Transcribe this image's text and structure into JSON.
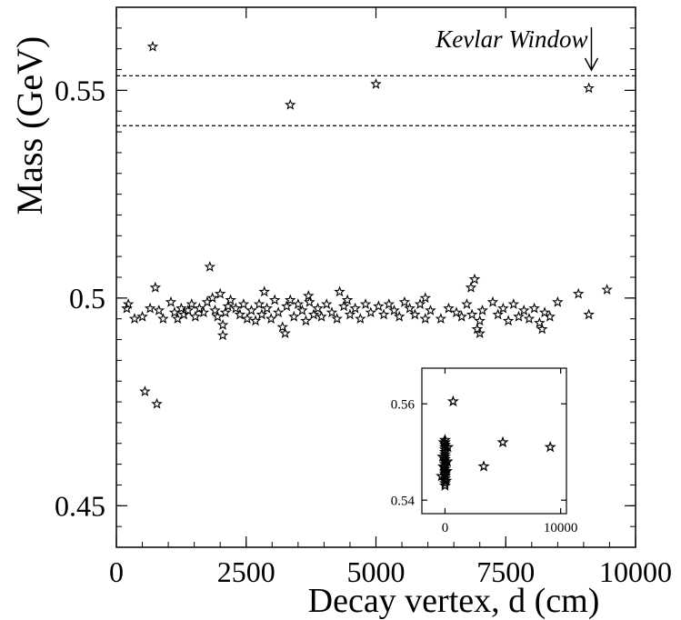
{
  "chart_data": [
    {
      "type": "scatter",
      "title": "",
      "xlabel": "Decay vertex, d (cm)",
      "ylabel": "Mass  (GeV)",
      "xlim": [
        0,
        10000
      ],
      "ylim": [
        0.44,
        0.57
      ],
      "xticks": [
        0,
        2500,
        5000,
        7500,
        10000
      ],
      "xtick_labels": [
        "0",
        "2500",
        "5000",
        "7500",
        "10000"
      ],
      "yticks": [
        0.45,
        0.5,
        0.55
      ],
      "ytick_labels": [
        "0.45",
        "0.5",
        "0.55"
      ],
      "grid": false,
      "marker": "star",
      "reference_lines": [
        0.5535,
        0.5415
      ],
      "annotation": {
        "text": "Kevlar Window",
        "x": 9150,
        "y": 0.5585
      },
      "points": [
        [
          700,
          0.5605
        ],
        [
          3350,
          0.5465
        ],
        [
          5000,
          0.5515
        ],
        [
          9100,
          0.5505
        ],
        [
          550,
          0.4775
        ],
        [
          780,
          0.4745
        ],
        [
          1800,
          0.5075
        ],
        [
          750,
          0.5025
        ],
        [
          6900,
          0.5045
        ],
        [
          6830,
          0.5025
        ],
        [
          9450,
          0.502
        ],
        [
          8900,
          0.501
        ],
        [
          2850,
          0.5015
        ],
        [
          4300,
          0.5015
        ],
        [
          2000,
          0.501
        ],
        [
          3700,
          0.5005
        ],
        [
          4450,
          0.4995
        ],
        [
          5950,
          0.5
        ],
        [
          200,
          0.4975
        ],
        [
          230,
          0.4985
        ],
        [
          350,
          0.495
        ],
        [
          500,
          0.4955
        ],
        [
          650,
          0.4975
        ],
        [
          820,
          0.497
        ],
        [
          900,
          0.495
        ],
        [
          1050,
          0.499
        ],
        [
          1120,
          0.4965
        ],
        [
          1180,
          0.495
        ],
        [
          1250,
          0.4975
        ],
        [
          1300,
          0.496
        ],
        [
          1380,
          0.497
        ],
        [
          1450,
          0.4985
        ],
        [
          1520,
          0.4955
        ],
        [
          1600,
          0.4975
        ],
        [
          1680,
          0.4965
        ],
        [
          1750,
          0.499
        ],
        [
          1850,
          0.5
        ],
        [
          1900,
          0.497
        ],
        [
          1950,
          0.4955
        ],
        [
          2050,
          0.4935
        ],
        [
          2100,
          0.4965
        ],
        [
          2150,
          0.498
        ],
        [
          2200,
          0.4995
        ],
        [
          2300,
          0.4975
        ],
        [
          2380,
          0.496
        ],
        [
          2450,
          0.4985
        ],
        [
          2520,
          0.495
        ],
        [
          2600,
          0.497
        ],
        [
          2680,
          0.4945
        ],
        [
          2750,
          0.4985
        ],
        [
          2800,
          0.496
        ],
        [
          2900,
          0.4975
        ],
        [
          2980,
          0.495
        ],
        [
          3050,
          0.4995
        ],
        [
          3120,
          0.4965
        ],
        [
          3200,
          0.493
        ],
        [
          3280,
          0.498
        ],
        [
          3350,
          0.4995
        ],
        [
          3420,
          0.4955
        ],
        [
          3500,
          0.4985
        ],
        [
          3580,
          0.497
        ],
        [
          3650,
          0.4945
        ],
        [
          3720,
          0.499
        ],
        [
          3800,
          0.496
        ],
        [
          3880,
          0.4975
        ],
        [
          3950,
          0.4955
        ],
        [
          4050,
          0.4985
        ],
        [
          4150,
          0.4965
        ],
        [
          4250,
          0.495
        ],
        [
          4380,
          0.498
        ],
        [
          4500,
          0.496
        ],
        [
          4600,
          0.4975
        ],
        [
          4700,
          0.495
        ],
        [
          4800,
          0.4985
        ],
        [
          4900,
          0.4965
        ],
        [
          5050,
          0.498
        ],
        [
          5150,
          0.496
        ],
        [
          5250,
          0.4985
        ],
        [
          5350,
          0.497
        ],
        [
          5450,
          0.4955
        ],
        [
          5550,
          0.499
        ],
        [
          5650,
          0.4975
        ],
        [
          5750,
          0.496
        ],
        [
          5850,
          0.4985
        ],
        [
          5950,
          0.495
        ],
        [
          6050,
          0.497
        ],
        [
          6250,
          0.495
        ],
        [
          6400,
          0.4975
        ],
        [
          6550,
          0.4965
        ],
        [
          6650,
          0.4955
        ],
        [
          6750,
          0.4985
        ],
        [
          6850,
          0.496
        ],
        [
          6950,
          0.4925
        ],
        [
          7000,
          0.4945
        ],
        [
          7050,
          0.497
        ],
        [
          7250,
          0.499
        ],
        [
          7350,
          0.496
        ],
        [
          7450,
          0.4975
        ],
        [
          7550,
          0.4945
        ],
        [
          7650,
          0.4985
        ],
        [
          7750,
          0.4955
        ],
        [
          7850,
          0.497
        ],
        [
          7950,
          0.495
        ],
        [
          8050,
          0.4975
        ],
        [
          8150,
          0.494
        ],
        [
          8250,
          0.4965
        ],
        [
          8350,
          0.4955
        ],
        [
          8500,
          0.499
        ],
        [
          9100,
          0.496
        ],
        [
          2050,
          0.491
        ],
        [
          3250,
          0.4915
        ],
        [
          7000,
          0.4915
        ],
        [
          8200,
          0.4925
        ]
      ]
    },
    {
      "type": "scatter",
      "title": "",
      "xlabel": "",
      "ylabel": "",
      "xlim": [
        -2000,
        10500
      ],
      "ylim": [
        0.5372,
        0.5674
      ],
      "xticks": [
        0,
        10000
      ],
      "xtick_labels": [
        "0",
        "10000"
      ],
      "yticks": [
        0.54,
        0.56
      ],
      "ytick_labels": [
        "0.54",
        "0.56"
      ],
      "grid": false,
      "marker": "star",
      "points": [
        [
          700,
          0.5605
        ],
        [
          3350,
          0.547
        ],
        [
          5000,
          0.552
        ],
        [
          9100,
          0.551
        ],
        [
          0,
          0.5525
        ],
        [
          0,
          0.552
        ],
        [
          0,
          0.5515
        ],
        [
          0,
          0.551
        ],
        [
          0,
          0.5505
        ],
        [
          0,
          0.55
        ],
        [
          0,
          0.5495
        ],
        [
          0,
          0.549
        ],
        [
          0,
          0.5485
        ],
        [
          0,
          0.548
        ],
        [
          0,
          0.5475
        ],
        [
          0,
          0.547
        ],
        [
          0,
          0.5465
        ],
        [
          0,
          0.546
        ],
        [
          0,
          0.5455
        ],
        [
          0,
          0.545
        ],
        [
          0,
          0.5445
        ],
        [
          0,
          0.544
        ],
        [
          0,
          0.5435
        ],
        [
          0,
          0.543
        ],
        [
          -200,
          0.549
        ],
        [
          -150,
          0.547
        ],
        [
          200,
          0.548
        ],
        [
          150,
          0.546
        ],
        [
          -300,
          0.545
        ],
        [
          250,
          0.551
        ],
        [
          -100,
          0.552
        ],
        [
          100,
          0.544
        ]
      ]
    }
  ]
}
